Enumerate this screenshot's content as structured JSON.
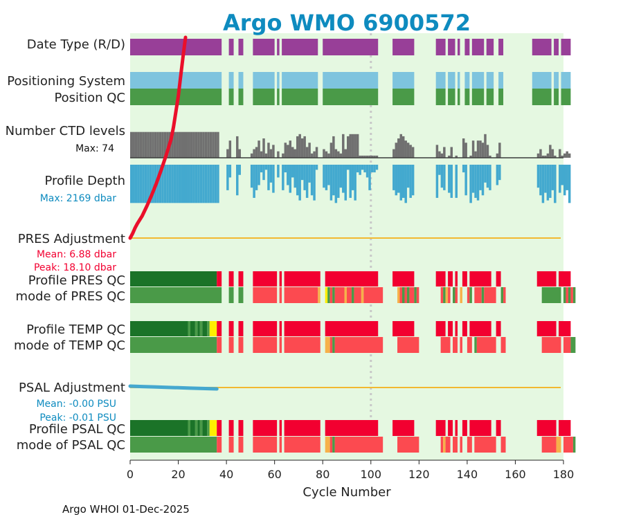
{
  "title": "Argo WMO 6900572",
  "footer": "Argo WHOI 01-Dec-2025",
  "colors": {
    "title": "#0e8bbf",
    "background": "#e5f8e1",
    "purple": "#983f98",
    "lightblue": "#7ec4de",
    "green": "#4a9a48",
    "darkgreen": "#1b7328",
    "grey": "#707070",
    "profileblue": "#43a9cf",
    "red": "#f20030",
    "lightred": "#fc4a50",
    "orange": "#f6b14a",
    "yellow": "#ffee00",
    "refline": "#f2b830",
    "depthcurve": "#ea0f2a",
    "psalline": "#45a8cf"
  },
  "rows": {
    "datetype": "Date Type (R/D)",
    "possys": "Positioning System",
    "posqc": "Position QC",
    "nlevels": "Number CTD levels",
    "nlevels_max": "Max: 74",
    "depth": "Profile Depth",
    "depth_max": "Max: 2169 dbar",
    "pres_adj": "PRES Adjustment",
    "pres_mean": "Mean: 6.88 dbar",
    "pres_peak": "Peak: 18.10 dbar",
    "pres_qc": "Profile PRES QC",
    "pres_mode": "mode of PRES QC",
    "temp_qc": "Profile TEMP QC",
    "temp_mode": "mode of TEMP QC",
    "psal_adj": "PSAL Adjustment",
    "psal_mean": "Mean: -0.00 PSU",
    "psal_peak": "Peak: -0.01 PSU",
    "psal_qc": "Profile PSAL QC",
    "psal_mode": "mode of PSAL QC"
  },
  "chart_data": {
    "type": "timeline",
    "xlabel": "Cycle Number",
    "xlim": [
      0,
      180
    ],
    "xticks": [
      "0",
      "20",
      "40",
      "60",
      "80",
      "100",
      "120",
      "140",
      "160",
      "180"
    ],
    "reference_cycle": 100,
    "missing_cycles": [
      38,
      39,
      40,
      43,
      44,
      47,
      48,
      49,
      50,
      60,
      62,
      78,
      79,
      103,
      104,
      105,
      106,
      107,
      108,
      118,
      119,
      120,
      121,
      122,
      123,
      124,
      125,
      126,
      131,
      135,
      137,
      138,
      141,
      147,
      151,
      152,
      155,
      156,
      157,
      158,
      159,
      160,
      161,
      162,
      163,
      164,
      165,
      166,
      175,
      178
    ],
    "date_type_mode": "D",
    "position_qc": "1",
    "n_ctd_levels_max": 74,
    "n_ctd_levels": [
      60,
      60,
      60,
      60,
      60,
      60,
      60,
      60,
      60,
      60,
      60,
      60,
      60,
      60,
      60,
      60,
      60,
      60,
      60,
      60,
      60,
      60,
      60,
      60,
      60,
      60,
      60,
      60,
      60,
      60,
      60,
      60,
      60,
      60,
      60,
      60,
      60,
      0,
      0,
      0,
      20,
      40,
      0,
      0,
      50,
      20,
      0,
      0,
      0,
      0,
      10,
      20,
      25,
      40,
      15,
      45,
      10,
      35,
      20,
      30,
      0,
      15,
      0,
      10,
      35,
      30,
      40,
      25,
      20,
      50,
      55,
      45,
      50,
      25,
      35,
      10,
      15,
      25,
      0,
      0,
      20,
      15,
      10,
      35,
      50,
      20,
      15,
      10,
      55,
      20,
      50,
      55,
      55,
      55,
      55,
      5,
      5,
      5,
      5,
      5,
      5,
      5,
      5,
      0,
      0,
      0,
      0,
      0,
      0,
      20,
      35,
      45,
      55,
      50,
      40,
      35,
      30,
      25,
      0,
      0,
      0,
      0,
      0,
      0,
      0,
      0,
      0,
      30,
      15,
      10,
      25,
      0,
      5,
      25,
      0,
      5,
      0,
      0,
      45,
      35,
      0,
      5,
      40,
      15,
      40,
      40,
      35,
      55,
      30,
      5,
      0,
      0,
      10,
      35,
      0,
      0,
      0,
      0,
      0,
      0,
      0,
      0,
      0,
      0,
      0,
      0,
      0,
      0,
      0,
      10,
      20,
      5,
      5,
      10,
      30,
      20,
      5,
      0,
      20,
      5,
      10,
      15,
      10
    ],
    "profile_depth_max": 2169,
    "profile_depth": [
      1500,
      1500,
      1500,
      1500,
      1500,
      1500,
      1500,
      1500,
      1500,
      1500,
      1500,
      1500,
      1500,
      1500,
      1500,
      1500,
      1500,
      1500,
      1500,
      1500,
      1500,
      1500,
      1500,
      1500,
      1500,
      1500,
      1500,
      1500,
      1500,
      1500,
      1500,
      1500,
      1500,
      1500,
      1500,
      1500,
      1500,
      0,
      0,
      0,
      1000,
      500,
      0,
      0,
      1200,
      400,
      0,
      0,
      0,
      0,
      900,
      1300,
      1000,
      800,
      300,
      600,
      200,
      1000,
      700,
      1100,
      0,
      500,
      0,
      1000,
      300,
      800,
      1100,
      500,
      900,
      1200,
      1400,
      600,
      1000,
      1300,
      700,
      1200,
      1400,
      200,
      0,
      0,
      900,
      1000,
      800,
      1400,
      1200,
      1500,
      1300,
      900,
      1100,
      1400,
      200,
      1300,
      1000,
      1400,
      300,
      400,
      200,
      300,
      500,
      1000,
      300,
      300,
      200,
      0,
      0,
      0,
      0,
      0,
      0,
      1000,
      1200,
      1100,
      1400,
      1300,
      1500,
      900,
      1300,
      1200,
      0,
      0,
      0,
      0,
      0,
      0,
      0,
      0,
      0,
      1300,
      400,
      900,
      1000,
      0,
      1100,
      1300,
      0,
      1300,
      0,
      0,
      300,
      1200,
      0,
      1500,
      1100,
      1300,
      1400,
      1000,
      1200,
      700,
      900,
      1000,
      0,
      0,
      800,
      600,
      0,
      0,
      0,
      0,
      0,
      0,
      0,
      0,
      0,
      0,
      0,
      0,
      0,
      0,
      0,
      900,
      1200,
      1500,
      1100,
      1400,
      1300,
      1000,
      1500,
      0,
      1100,
      800,
      1200,
      1000,
      1500
    ],
    "pres_qc": [
      "A",
      "A",
      "A",
      "A",
      "A",
      "A",
      "A",
      "A",
      "A",
      "A",
      "A",
      "A",
      "A",
      "A",
      "A",
      "A",
      "A",
      "A",
      "A",
      "A",
      "A",
      "A",
      "A",
      "A",
      "A",
      "A",
      "A",
      "A",
      "A",
      "A",
      "A",
      "A",
      "A",
      "A",
      "A",
      "A",
      "F",
      "F",
      "",
      "",
      "",
      "F",
      "F",
      "",
      "",
      "F",
      "F",
      "",
      "",
      "",
      "",
      "F",
      "F",
      "F",
      "F",
      "F",
      "F",
      "F",
      "F",
      "F",
      "F",
      "",
      "F",
      "",
      "F",
      "F",
      "F",
      "F",
      "F",
      "F",
      "F",
      "F",
      "F",
      "F",
      "F",
      "F",
      "F",
      "F",
      "F",
      "",
      "",
      "F",
      "F",
      "F",
      "F",
      "F",
      "F",
      "F",
      "F",
      "F",
      "F",
      "F",
      "F",
      "F",
      "F",
      "F",
      "F",
      "F",
      "F",
      "F",
      "F",
      "F",
      "F",
      "",
      "",
      "",
      "",
      "",
      "",
      "F",
      "F",
      "F",
      "F",
      "F",
      "F",
      "F",
      "F",
      "F",
      "",
      "",
      "",
      "",
      "",
      "",
      "",
      "",
      "",
      "F",
      "F",
      "F",
      "F",
      "",
      "F",
      "F",
      "",
      "F",
      "",
      "",
      "F",
      "F",
      "",
      "F",
      "F",
      "F",
      "F",
      "F",
      "F",
      "F",
      "F",
      "F",
      "",
      "",
      "F",
      "F",
      "",
      "",
      "",
      "",
      "",
      "",
      "",
      "",
      "",
      "",
      "",
      "",
      "",
      "",
      "",
      "F",
      "F",
      "F",
      "F",
      "F",
      "F",
      "F",
      "F",
      "",
      "F",
      "F",
      "F",
      "F",
      "F"
    ],
    "pres_mode": [
      "1",
      "1",
      "1",
      "1",
      "1",
      "1",
      "1",
      "1",
      "1",
      "1",
      "1",
      "1",
      "1",
      "1",
      "1",
      "1",
      "1",
      "1",
      "1",
      "1",
      "1",
      "1",
      "1",
      "1",
      "1",
      "1",
      "1",
      "1",
      "1",
      "1",
      "1",
      "1",
      "1",
      "1",
      "1",
      "1",
      "1",
      "1",
      "",
      "",
      "",
      "1",
      "1",
      "",
      "",
      "1",
      "1",
      "",
      "",
      "",
      "",
      "4",
      "4",
      "4",
      "4",
      "4",
      "4",
      "4",
      "4",
      "4",
      "4",
      "",
      "4",
      "",
      "4",
      "4",
      "4",
      "4",
      "4",
      "4",
      "4",
      "4",
      "4",
      "4",
      "4",
      "4",
      "4",
      "4",
      "3",
      "",
      "",
      "2",
      "1",
      "4",
      "1",
      "4",
      "4",
      "4",
      "4",
      "3",
      "4",
      "4",
      "1",
      "4",
      "4",
      "4",
      "3",
      "4",
      "4",
      "4",
      "4",
      "4",
      "4",
      "4",
      "4",
      "",
      "",
      "",
      "",
      "",
      "",
      "3",
      "4",
      "1",
      "4",
      "1",
      "4",
      "4",
      "1",
      "4",
      "",
      "",
      "",
      "",
      "",
      "",
      "",
      "",
      "",
      "4",
      "1",
      "3",
      "4",
      "",
      "1",
      "4",
      "",
      "3",
      "",
      "",
      "4",
      "1",
      "",
      "4",
      "4",
      "4",
      "1",
      "4",
      "4",
      "4",
      "4",
      "4",
      "",
      "",
      "1",
      "4",
      "",
      "",
      "",
      "",
      "",
      "",
      "",
      "",
      "",
      "",
      "",
      "",
      "",
      "",
      "",
      "1",
      "1",
      "1",
      "1",
      "1",
      "1",
      "1",
      "1",
      "",
      "1",
      "4",
      "1",
      "4",
      "1"
    ],
    "temp_qc": [
      "A",
      "A",
      "A",
      "A",
      "A",
      "A",
      "A",
      "A",
      "A",
      "A",
      "A",
      "A",
      "A",
      "A",
      "A",
      "A",
      "A",
      "A",
      "A",
      "A",
      "A",
      "A",
      "A",
      "A",
      "B",
      "A",
      "A",
      "B",
      "A",
      "B",
      "A",
      "A",
      "B",
      "C",
      "C",
      "C",
      "F",
      "F",
      "",
      "",
      "",
      "F",
      "F",
      "",
      "",
      "F",
      "F",
      "",
      "",
      "",
      "",
      "F",
      "F",
      "F",
      "F",
      "F",
      "F",
      "F",
      "F",
      "F",
      "F",
      "",
      "F",
      "",
      "F",
      "F",
      "F",
      "F",
      "F",
      "F",
      "F",
      "F",
      "F",
      "F",
      "F",
      "F",
      "F",
      "F",
      "F",
      "",
      "",
      "F",
      "F",
      "F",
      "F",
      "F",
      "F",
      "F",
      "F",
      "F",
      "F",
      "F",
      "F",
      "F",
      "F",
      "F",
      "F",
      "F",
      "F",
      "F",
      "F",
      "F",
      "F",
      "",
      "",
      "",
      "",
      "",
      "",
      "F",
      "F",
      "F",
      "F",
      "F",
      "F",
      "F",
      "F",
      "F",
      "",
      "",
      "",
      "",
      "",
      "",
      "",
      "",
      "",
      "F",
      "F",
      "F",
      "F",
      "",
      "F",
      "F",
      "",
      "F",
      "",
      "",
      "F",
      "F",
      "",
      "F",
      "F",
      "F",
      "F",
      "F",
      "F",
      "F",
      "F",
      "F",
      "",
      "",
      "F",
      "F",
      "",
      "",
      "",
      "",
      "",
      "",
      "",
      "",
      "",
      "",
      "",
      "",
      "",
      "",
      "",
      "F",
      "F",
      "F",
      "F",
      "F",
      "F",
      "F",
      "F",
      "",
      "F",
      "F",
      "F",
      "F",
      "F"
    ],
    "temp_mode": [
      "1",
      "1",
      "1",
      "1",
      "1",
      "1",
      "1",
      "1",
      "1",
      "1",
      "1",
      "1",
      "1",
      "1",
      "1",
      "1",
      "1",
      "1",
      "1",
      "1",
      "1",
      "1",
      "1",
      "1",
      "1",
      "1",
      "1",
      "1",
      "1",
      "1",
      "1",
      "1",
      "1",
      "1",
      "1",
      "1",
      "4",
      "4",
      "",
      "",
      "",
      "4",
      "4",
      "",
      "",
      "4",
      "4",
      "",
      "",
      "",
      "",
      "4",
      "4",
      "4",
      "4",
      "4",
      "4",
      "4",
      "4",
      "4",
      "4",
      "",
      "4",
      "",
      "4",
      "4",
      "4",
      "4",
      "4",
      "4",
      "4",
      "4",
      "4",
      "4",
      "4",
      "4",
      "4",
      "4",
      "4",
      "",
      "",
      "3",
      "3",
      "4",
      "1",
      "4",
      "4",
      "4",
      "4",
      "4",
      "4",
      "4",
      "4",
      "4",
      "4",
      "4",
      "4",
      "4",
      "4",
      "4",
      "4",
      "4",
      "4",
      "4",
      "4",
      "",
      "",
      "",
      "",
      "",
      "",
      "4",
      "4",
      "4",
      "4",
      "4",
      "4",
      "4",
      "4",
      "4",
      "",
      "",
      "",
      "",
      "",
      "",
      "",
      "",
      "",
      "4",
      "4",
      "4",
      "4",
      "",
      "4",
      "4",
      "",
      "4",
      "",
      "",
      "4",
      "4",
      "",
      "1",
      "4",
      "4",
      "4",
      "4",
      "4",
      "4",
      "4",
      "4",
      "",
      "",
      "4",
      "4",
      "",
      "",
      "",
      "",
      "",
      "",
      "",
      "",
      "",
      "",
      "",
      "",
      "",
      "",
      "",
      "4",
      "4",
      "4",
      "4",
      "4",
      "4",
      "4",
      "4",
      "",
      "4",
      "4",
      "4",
      "1",
      "1"
    ],
    "psal_qc": [
      "A",
      "A",
      "A",
      "A",
      "A",
      "A",
      "A",
      "A",
      "A",
      "A",
      "A",
      "A",
      "A",
      "A",
      "A",
      "A",
      "A",
      "A",
      "A",
      "A",
      "A",
      "A",
      "A",
      "A",
      "B",
      "A",
      "A",
      "B",
      "A",
      "B",
      "A",
      "A",
      "B",
      "C",
      "C",
      "C",
      "F",
      "F",
      "",
      "",
      "",
      "F",
      "F",
      "",
      "",
      "F",
      "F",
      "",
      "",
      "",
      "",
      "F",
      "F",
      "F",
      "F",
      "F",
      "F",
      "F",
      "F",
      "F",
      "F",
      "",
      "F",
      "",
      "F",
      "F",
      "F",
      "F",
      "F",
      "F",
      "F",
      "F",
      "F",
      "F",
      "F",
      "F",
      "F",
      "F",
      "F",
      "",
      "",
      "F",
      "F",
      "F",
      "F",
      "F",
      "F",
      "F",
      "F",
      "F",
      "F",
      "F",
      "F",
      "F",
      "F",
      "F",
      "F",
      "F",
      "F",
      "F",
      "F",
      "F",
      "F",
      "",
      "",
      "",
      "",
      "",
      "",
      "F",
      "F",
      "F",
      "F",
      "F",
      "F",
      "F",
      "F",
      "F",
      "",
      "",
      "",
      "",
      "",
      "",
      "",
      "",
      "",
      "F",
      "F",
      "F",
      "F",
      "",
      "F",
      "F",
      "",
      "F",
      "",
      "",
      "F",
      "F",
      "",
      "F",
      "F",
      "F",
      "F",
      "F",
      "F",
      "F",
      "F",
      "F",
      "",
      "",
      "F",
      "F",
      "",
      "",
      "",
      "",
      "",
      "",
      "",
      "",
      "",
      "",
      "",
      "",
      "",
      "",
      "",
      "F",
      "F",
      "F",
      "F",
      "F",
      "F",
      "F",
      "F",
      "",
      "F",
      "F",
      "F",
      "F",
      "F"
    ],
    "psal_mode": [
      "1",
      "1",
      "1",
      "1",
      "1",
      "1",
      "1",
      "1",
      "1",
      "1",
      "1",
      "1",
      "1",
      "1",
      "1",
      "1",
      "1",
      "1",
      "1",
      "1",
      "1",
      "1",
      "1",
      "1",
      "1",
      "1",
      "1",
      "1",
      "1",
      "1",
      "1",
      "1",
      "1",
      "1",
      "1",
      "1",
      "4",
      "4",
      "",
      "",
      "",
      "4",
      "4",
      "",
      "",
      "4",
      "4",
      "",
      "",
      "",
      "",
      "4",
      "4",
      "4",
      "4",
      "4",
      "4",
      "4",
      "4",
      "4",
      "4",
      "",
      "4",
      "",
      "4",
      "4",
      "4",
      "4",
      "4",
      "4",
      "4",
      "4",
      "4",
      "4",
      "4",
      "4",
      "4",
      "4",
      "4",
      "",
      "",
      "3",
      "3",
      "4",
      "1",
      "4",
      "4",
      "4",
      "4",
      "4",
      "4",
      "4",
      "4",
      "4",
      "4",
      "4",
      "4",
      "4",
      "4",
      "4",
      "4",
      "4",
      "4",
      "4",
      "4",
      "",
      "",
      "",
      "",
      "",
      "",
      "4",
      "4",
      "4",
      "4",
      "4",
      "4",
      "4",
      "4",
      "4",
      "",
      "",
      "",
      "",
      "",
      "",
      "",
      "",
      "",
      "4",
      "3",
      "4",
      "4",
      "",
      "4",
      "4",
      "",
      "4",
      "",
      "",
      "4",
      "4",
      "",
      "4",
      "4",
      "4",
      "4",
      "4",
      "4",
      "4",
      "4",
      "4",
      "",
      "",
      "4",
      "4",
      "",
      "",
      "",
      "",
      "",
      "",
      "",
      "",
      "",
      "",
      "",
      "",
      "",
      "",
      "",
      "4",
      "4",
      "4",
      "4",
      "4",
      "4",
      "3",
      "3",
      "",
      "4",
      "4",
      "4",
      "4",
      "1"
    ],
    "pres_adjustment_curve": [
      [
        0,
        0
      ],
      [
        1,
        0.4
      ],
      [
        2,
        0.9
      ],
      [
        3,
        1.3
      ],
      [
        5,
        2.0
      ],
      [
        7,
        2.9
      ],
      [
        9,
        3.9
      ],
      [
        11,
        5.0
      ],
      [
        13,
        6.2
      ],
      [
        15,
        7.5
      ],
      [
        17,
        8.9
      ],
      [
        18,
        10.0
      ],
      [
        19,
        11.4
      ],
      [
        20,
        12.8
      ],
      [
        21,
        14.6
      ],
      [
        22,
        16.4
      ],
      [
        23,
        18.1
      ]
    ],
    "psal_adjustment_curve": [
      [
        0,
        0
      ],
      [
        5,
        -0.001
      ],
      [
        10,
        -0.002
      ],
      [
        15,
        -0.003
      ],
      [
        20,
        -0.004
      ],
      [
        25,
        -0.005
      ],
      [
        30,
        -0.006
      ],
      [
        36,
        -0.007
      ]
    ]
  }
}
